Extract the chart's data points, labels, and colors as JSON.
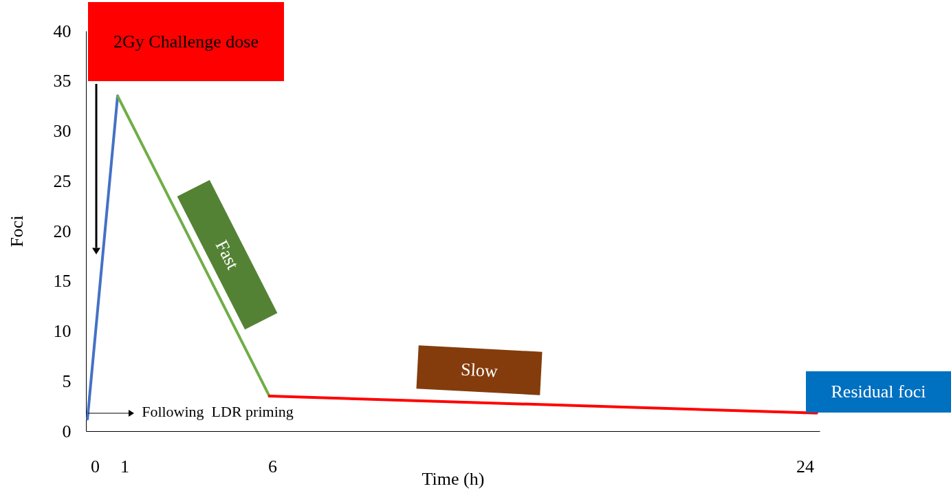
{
  "chart_data": {
    "type": "line",
    "xlabel": "Time (h)",
    "ylabel": "Foci",
    "xlim": [
      -0.3,
      24.5
    ],
    "xticks": [
      0,
      1,
      6,
      24
    ],
    "ylim": [
      0,
      40
    ],
    "yticks": [
      0,
      5,
      10,
      15,
      20,
      25,
      30,
      35,
      40
    ],
    "series": [
      {
        "color": "#4472c4",
        "x": [
          -0.25,
          0.77
        ],
        "values": [
          1.2,
          33.5
        ]
      },
      {
        "color": "#70ad47",
        "x": [
          0.77,
          5.9
        ],
        "values": [
          33.5,
          3.5
        ]
      },
      {
        "color": "#ff0000",
        "x": [
          5.9,
          24.4
        ],
        "values": [
          3.5,
          1.8
        ]
      }
    ],
    "annotations": [
      "2Gy Challenge dose",
      "Fast",
      "Slow",
      "Residual foci",
      {
        "text": "Following  LDR priming",
        "x": -0.25,
        "y": 1.8
      }
    ],
    "grid": false,
    "marker": "none",
    "line_style": "solid"
  }
}
